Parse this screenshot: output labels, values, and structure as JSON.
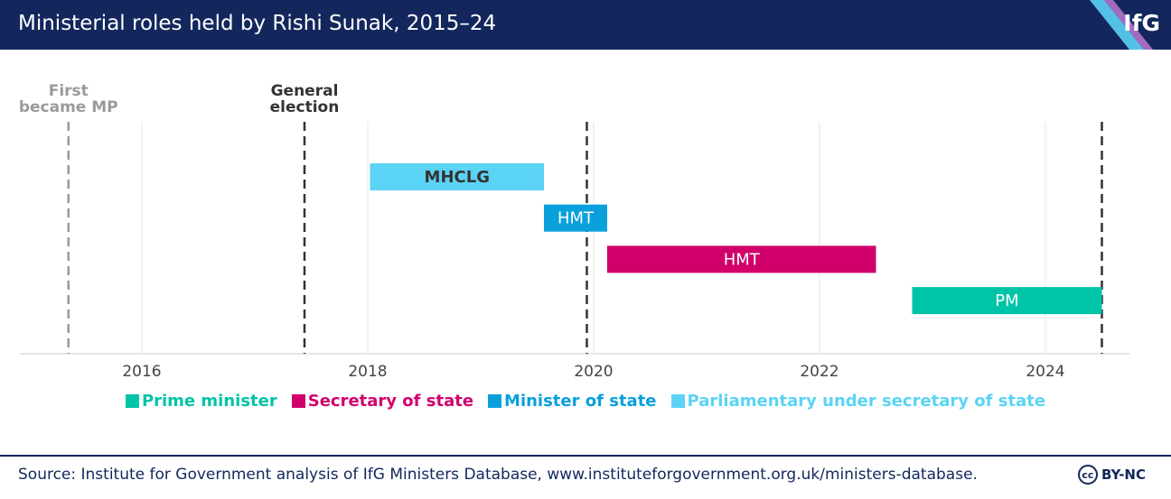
{
  "header": {
    "title": "Ministerial roles held by Rishi Sunak, 2015–24",
    "logo": "IfG"
  },
  "chart_data": {
    "type": "gantt",
    "xlim": [
      2015,
      2024.75
    ],
    "xticks": [
      2016,
      2018,
      2020,
      2022,
      2024
    ],
    "grid": true,
    "events": [
      {
        "x": 2015.35,
        "label": "First became MP",
        "color": "#9a9a9a"
      },
      {
        "x": 2017.44,
        "label": "General election",
        "color": "#333333"
      },
      {
        "x": 2019.94,
        "label": null,
        "color": "#333333"
      },
      {
        "x": 2024.5,
        "label": null,
        "color": "#333333"
      }
    ],
    "series": [
      {
        "name": "Prime minister",
        "color": "#00c4a7",
        "text_color": "#ffffff",
        "labels": [
          "PM"
        ],
        "starts": [
          2022.82
        ],
        "ends": [
          2024.5
        ]
      },
      {
        "name": "Secretary of state",
        "color": "#d1006b",
        "text_color": "#ffffff",
        "labels": [
          "HMT"
        ],
        "starts": [
          2020.12
        ],
        "ends": [
          2022.5
        ]
      },
      {
        "name": "Minister of state",
        "color": "#0aa0dc",
        "text_color": "#ffffff",
        "labels": [
          "HMT"
        ],
        "starts": [
          2019.56
        ],
        "ends": [
          2020.12
        ]
      },
      {
        "name": "Parliamentary under secretary of state",
        "color": "#5bd3f5",
        "text_color": "#333333",
        "labels": [
          "MHCLG"
        ],
        "starts": [
          2018.02
        ],
        "ends": [
          2019.56
        ]
      }
    ]
  },
  "footer": {
    "source": "Source: Institute for Government analysis of IfG Ministers Database, www.instituteforgovernment.org.uk/ministers-database.",
    "license": "BY-NC",
    "cc": "cc"
  }
}
